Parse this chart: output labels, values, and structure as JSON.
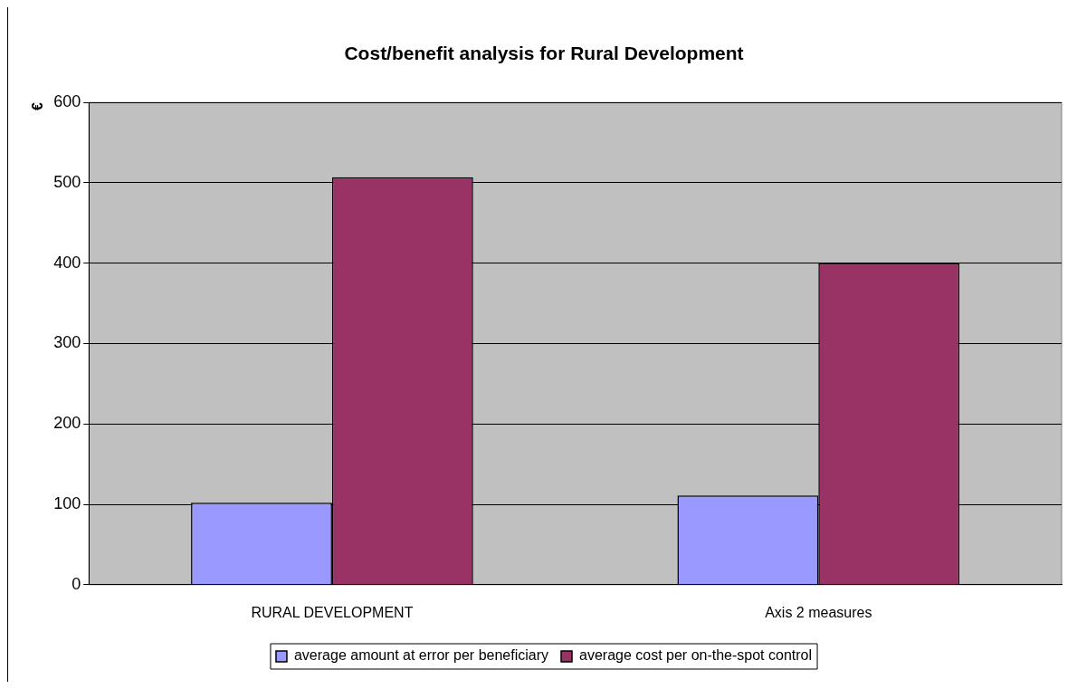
{
  "chart_data": {
    "type": "bar",
    "title": "Cost/benefit analysis for Rural Development",
    "ylabel": "€",
    "categories": [
      "RURAL DEVELOPMENT",
      "Axis 2 measures"
    ],
    "series": [
      {
        "name": "average amount at error per beneficiary",
        "color": "#9999ff",
        "values": [
          102,
          111
        ]
      },
      {
        "name": "average cost per on-the-spot control",
        "color": "#993366",
        "values": [
          507,
          400
        ]
      }
    ],
    "ylim": [
      0,
      600
    ],
    "yticks": [
      0,
      100,
      200,
      300,
      400,
      500,
      600
    ],
    "grid": "y",
    "legend": "bottom"
  }
}
